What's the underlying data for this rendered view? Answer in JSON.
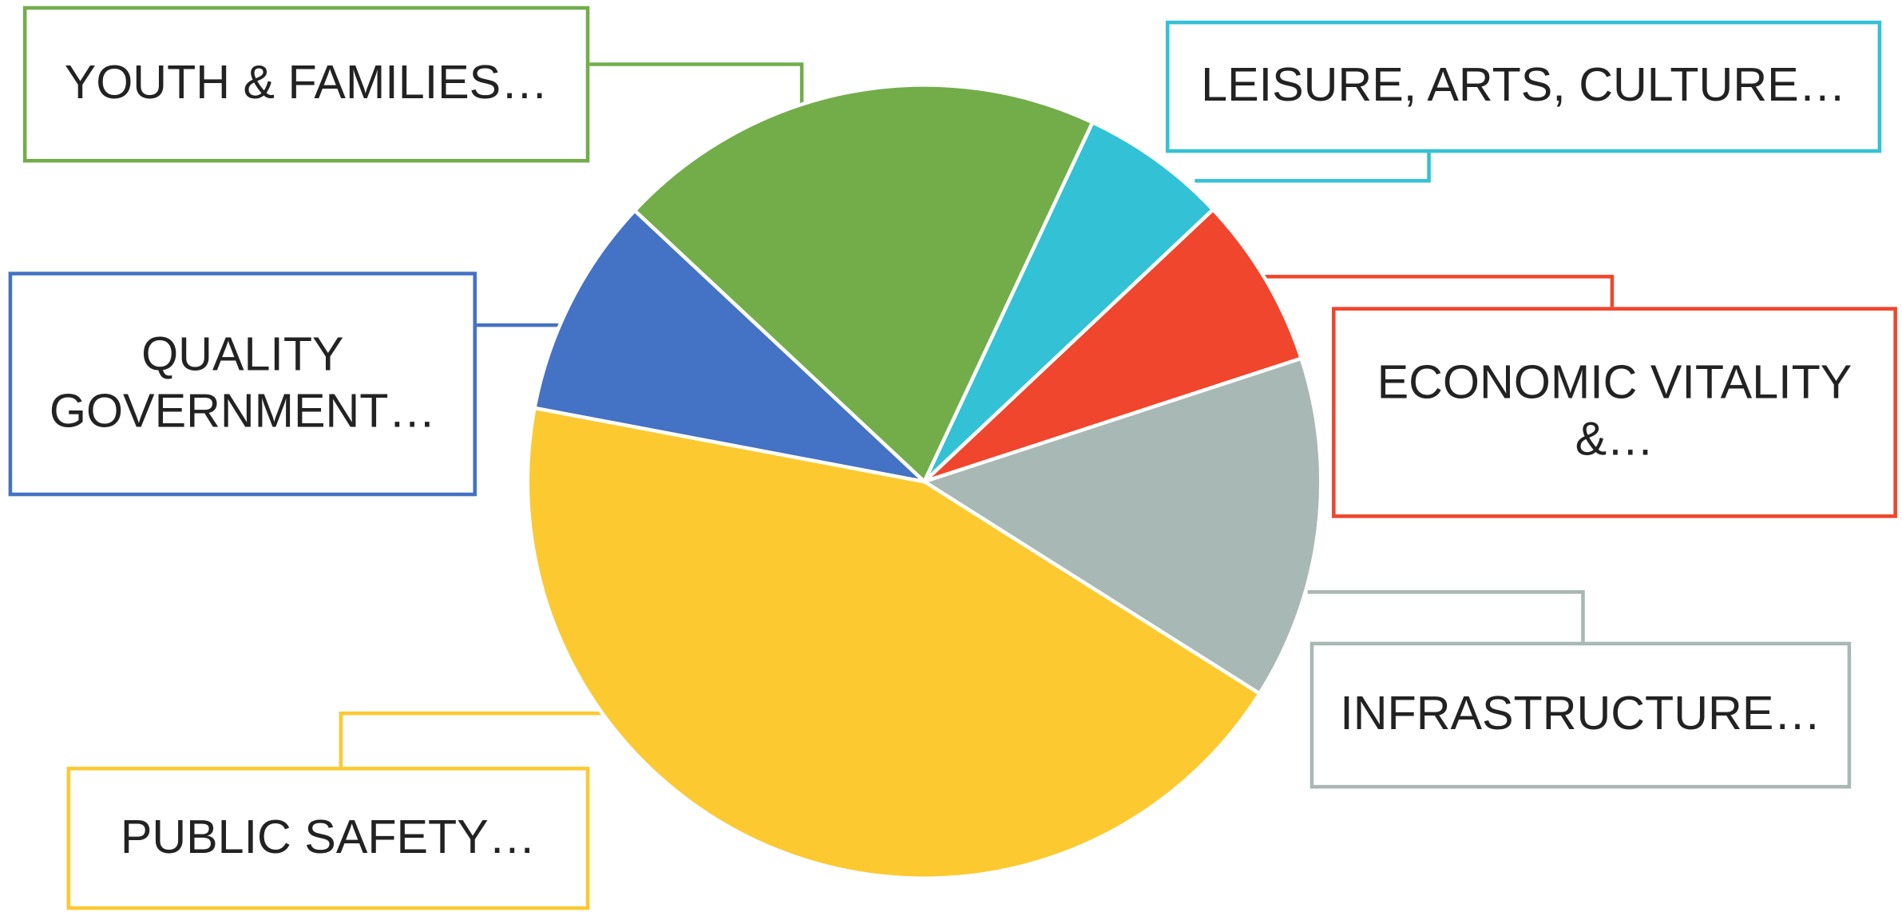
{
  "chart_data": {
    "type": "pie",
    "categories": [
      "YOUTH & FAMILIES…",
      "LEISURE, ARTS, CULTURE…",
      "ECONOMIC VITALITY &…",
      "INFRASTRUCTURE…",
      "PUBLIC SAFETY…",
      "QUALITY GOVERNMENT…"
    ],
    "values": [
      20,
      6,
      7,
      14,
      44,
      9
    ],
    "colors": [
      "#72ad4a",
      "#33c1d6",
      "#ef462d",
      "#a8b8b5",
      "#fcc931",
      "#4472c4"
    ]
  }
}
